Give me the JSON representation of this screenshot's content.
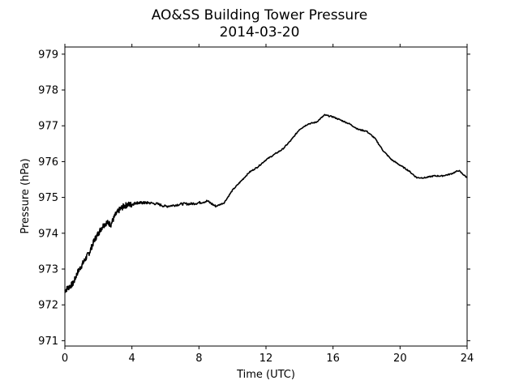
{
  "chart_data": {
    "type": "line",
    "title": "AO&SS Building Tower Pressure",
    "subtitle": "2014-03-20",
    "xlabel": "Time (UTC)",
    "ylabel": "Pressure (hPa)",
    "xlim": [
      0,
      24
    ],
    "ylim": [
      970.85,
      979.2
    ],
    "xticks": [
      0,
      4,
      8,
      12,
      16,
      20,
      24
    ],
    "yticks": [
      971,
      972,
      973,
      974,
      975,
      976,
      977,
      978,
      979
    ],
    "grid": false,
    "legend": "none",
    "line_color": "#000000",
    "series": [
      {
        "x": [
          0.0,
          0.25,
          0.5,
          0.75,
          1.0,
          1.25,
          1.5,
          1.75,
          2.0,
          2.25,
          2.5,
          2.75,
          3.0,
          3.25,
          3.5,
          3.75,
          4.0,
          4.25,
          4.5,
          4.75,
          5.0,
          5.5,
          6.0,
          6.5,
          7.0,
          7.5,
          8.0,
          8.5,
          9.0,
          9.5,
          10.0,
          10.5,
          11.0,
          11.5,
          12.0,
          12.5,
          13.0,
          13.5,
          14.0,
          14.5,
          15.0,
          15.5,
          16.0,
          16.5,
          17.0,
          17.5,
          18.0,
          18.5,
          19.0,
          19.5,
          20.0,
          20.5,
          21.0,
          21.5,
          22.0,
          22.5,
          23.0,
          23.5,
          24.0
        ],
        "y": [
          972.4,
          972.5,
          972.6,
          972.9,
          973.1,
          973.3,
          973.5,
          973.8,
          974.0,
          974.2,
          974.3,
          974.25,
          974.5,
          974.65,
          974.75,
          974.8,
          974.8,
          974.85,
          974.85,
          974.85,
          974.85,
          974.82,
          974.75,
          974.78,
          974.82,
          974.82,
          974.85,
          974.9,
          974.75,
          974.85,
          975.2,
          975.45,
          975.7,
          975.85,
          976.05,
          976.2,
          976.35,
          976.6,
          976.9,
          977.05,
          977.1,
          977.3,
          977.25,
          977.15,
          977.05,
          976.9,
          976.85,
          976.65,
          976.3,
          976.05,
          975.9,
          975.75,
          975.55,
          975.55,
          975.6,
          975.6,
          975.65,
          975.75,
          975.55
        ]
      }
    ]
  }
}
